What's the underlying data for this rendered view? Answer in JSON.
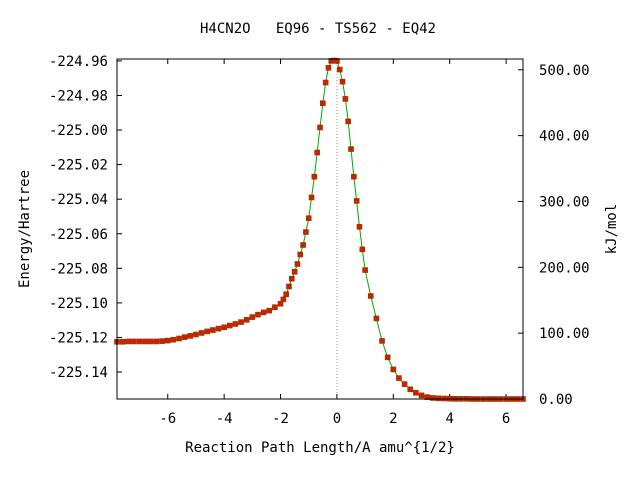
{
  "chart_data": {
    "type": "line",
    "title": "H4CN2O   EQ96 - TS562 - EQ42",
    "xlabel": "Reaction Path Length/A amu^{1/2}",
    "ylabel": "Energy/Hartree",
    "y2label": "kJ/mol",
    "xlim": [
      -7.8,
      6.6
    ],
    "ylim": [
      -225.1556,
      -224.9589
    ],
    "y2lim": [
      0,
      516.4
    ],
    "x_ticks": [
      -6,
      -4,
      -2,
      0,
      2,
      4,
      6
    ],
    "y_ticks": [
      -224.96,
      -224.98,
      -225.0,
      -225.02,
      -225.04,
      -225.06,
      -225.08,
      -225.1,
      -225.12,
      -225.14
    ],
    "y_tick_labels": [
      "-224.96",
      "-224.98",
      "-225.00",
      "-225.02",
      "-225.04",
      "-225.06",
      "-225.08",
      "-225.10",
      "-225.12",
      "-225.14"
    ],
    "y2_ticks": [
      0,
      100,
      200,
      300,
      400,
      500
    ],
    "y2_tick_labels": [
      "0.00",
      "100.00",
      "200.00",
      "300.00",
      "400.00",
      "500.00"
    ],
    "ts_marker_x": 0,
    "line_color": "#00aa00",
    "marker_color": "#cc2200",
    "marker_stroke": "#8b3a00",
    "ts_line_color": "#999999",
    "series": [
      {
        "x": [
          -7.8,
          -7.6,
          -7.4,
          -7.2,
          -7.0,
          -6.8,
          -6.6,
          -6.4,
          -6.2,
          -6.0,
          -5.8,
          -5.6,
          -5.4,
          -5.2,
          -5.0,
          -4.8,
          -4.6,
          -4.4,
          -4.2,
          -4.0,
          -3.8,
          -3.6,
          -3.4,
          -3.2,
          -3.0,
          -2.8,
          -2.6,
          -2.4,
          -2.2,
          -2.0,
          -1.9,
          -1.8,
          -1.7,
          -1.6,
          -1.5,
          -1.4,
          -1.3,
          -1.2,
          -1.1,
          -1.0,
          -0.9,
          -0.8,
          -0.7,
          -0.6,
          -0.5,
          -0.4,
          -0.3,
          -0.2,
          -0.1,
          0.0,
          0.1,
          0.2,
          0.3,
          0.4,
          0.5,
          0.6,
          0.7,
          0.8,
          0.9,
          1.0,
          1.2,
          1.4,
          1.6,
          1.8,
          2.0,
          2.2,
          2.4,
          2.6,
          2.8,
          3.0,
          3.2,
          3.4,
          3.6,
          3.8,
          4.0,
          4.2,
          4.4,
          4.6,
          4.8,
          5.0,
          5.2,
          5.4,
          5.6,
          5.8,
          6.0,
          6.2,
          6.4,
          6.6
        ],
        "y": [
          -225.1225,
          -225.1225,
          -225.1223,
          -225.1223,
          -225.1223,
          -225.1223,
          -225.1223,
          -225.1223,
          -225.1221,
          -225.1218,
          -225.1213,
          -225.1206,
          -225.1198,
          -225.1191,
          -225.1183,
          -225.1174,
          -225.1165,
          -225.1157,
          -225.1149,
          -225.1141,
          -225.1131,
          -225.1122,
          -225.1111,
          -225.1098,
          -225.1082,
          -225.1068,
          -225.1055,
          -225.1045,
          -225.1025,
          -225.1005,
          -225.098,
          -225.095,
          -225.0905,
          -225.086,
          -225.082,
          -225.0775,
          -225.072,
          -225.0665,
          -225.059,
          -225.051,
          -225.039,
          -225.027,
          -225.013,
          -224.9985,
          -224.9845,
          -224.9725,
          -224.964,
          -224.96,
          -224.9598,
          -224.96,
          -224.965,
          -224.972,
          -224.982,
          -224.995,
          -225.011,
          -225.027,
          -225.041,
          -225.056,
          -225.069,
          -225.081,
          -225.096,
          -225.109,
          -225.122,
          -225.1315,
          -225.1385,
          -225.1435,
          -225.147,
          -225.15,
          -225.152,
          -225.1535,
          -225.1545,
          -225.155,
          -225.1552,
          -225.1553,
          -225.1554,
          -225.1555,
          -225.1555,
          -225.1555,
          -225.1556,
          -225.1556,
          -225.1556,
          -225.1556,
          -225.1556,
          -225.1556,
          -225.1556,
          -225.1556,
          -225.1556,
          -225.1556
        ]
      }
    ]
  }
}
